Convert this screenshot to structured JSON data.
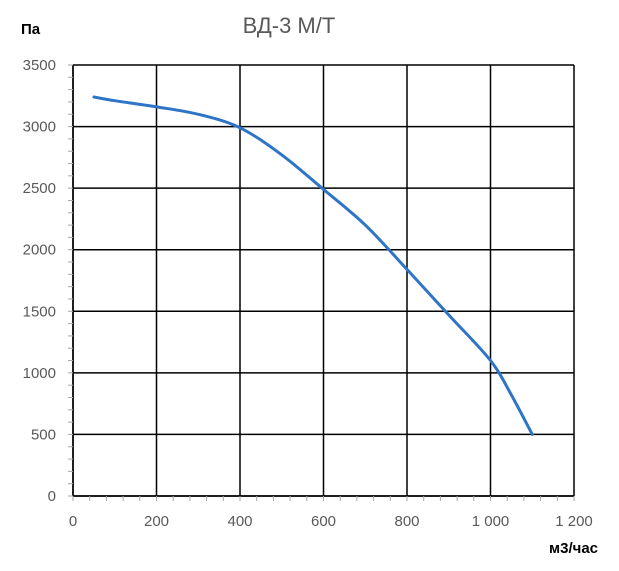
{
  "chart_data": {
    "type": "line",
    "title": "ВД-3 М/Т",
    "ylabel": "Па",
    "xlabel": "м3/час",
    "xlim": [
      0,
      1200
    ],
    "ylim": [
      0,
      3500
    ],
    "x_ticks": [
      0,
      200,
      400,
      600,
      800,
      1000,
      1200
    ],
    "x_tick_labels": [
      "0",
      "200",
      "400",
      "600",
      "800",
      "1 000",
      "1 200"
    ],
    "y_ticks": [
      0,
      500,
      1000,
      1500,
      2000,
      2500,
      3000,
      3500
    ],
    "y_tick_labels": [
      "0",
      "500",
      "1000",
      "1500",
      "2000",
      "2500",
      "3000",
      "3500"
    ],
    "grid": true,
    "legend": "none",
    "series": [
      {
        "color": "#2e75c7",
        "x": [
          50,
          100,
          200,
          300,
          400,
          500,
          600,
          700,
          800,
          900,
          1000,
          1050,
          1100
        ],
        "y": [
          3240,
          3210,
          3160,
          3100,
          2990,
          2770,
          2490,
          2200,
          1840,
          1470,
          1100,
          820,
          500
        ]
      }
    ]
  }
}
